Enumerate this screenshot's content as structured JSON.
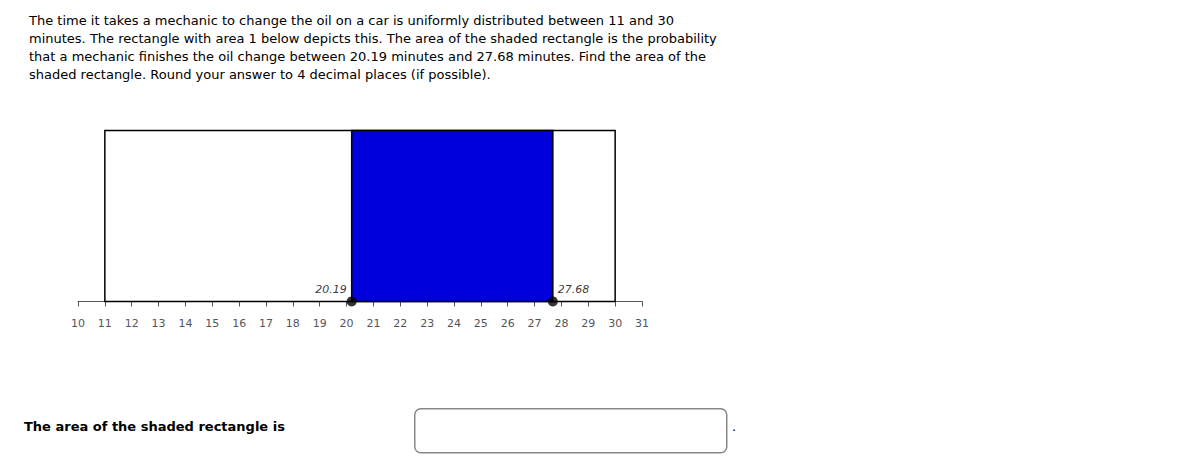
{
  "chart_data": {
    "type": "rect",
    "title": "The time it takes a mechanic to change the oil on a car is uniformly distributed between 11 and 30\nminutes. The rectangle with area 1 below depicts this. The area of the shaded rectangle is the probability\nthat a mechanic finishes the oil change between 20.19 minutes and 27.68 minutes. Find the area of the\nshaded rectangle. Round your answer to 4 decimal places (if possible).",
    "xlim": [
      10,
      31
    ],
    "ylim": [
      -0.05,
      1.12
    ],
    "xticks": [
      10,
      11,
      12,
      13,
      14,
      15,
      16,
      17,
      18,
      19,
      20,
      21,
      22,
      23,
      24,
      25,
      26,
      27,
      28,
      29,
      30,
      31
    ],
    "tick_labels": "x",
    "grid": false,
    "edge_color": "#000000",
    "rectangles": [
      {
        "x0": 11,
        "x1": 30,
        "height": 1.0,
        "color": "#ffffff"
      },
      {
        "x0": 20.19,
        "x1": 27.68,
        "height": 1.0,
        "color": "#0000dd"
      }
    ],
    "points": {
      "x": [
        20.19,
        27.68
      ],
      "y": [
        0,
        0
      ],
      "color": "#000000"
    },
    "annotations": [
      {
        "text": "20.19",
        "x": 20.19,
        "y": 0
      },
      {
        "text": "27.68",
        "x": 27.68,
        "y": 0
      }
    ],
    "answer": {
      "text": "The area of the shaded rectangle is",
      "end": ".",
      "box_color": "#888888"
    }
  }
}
